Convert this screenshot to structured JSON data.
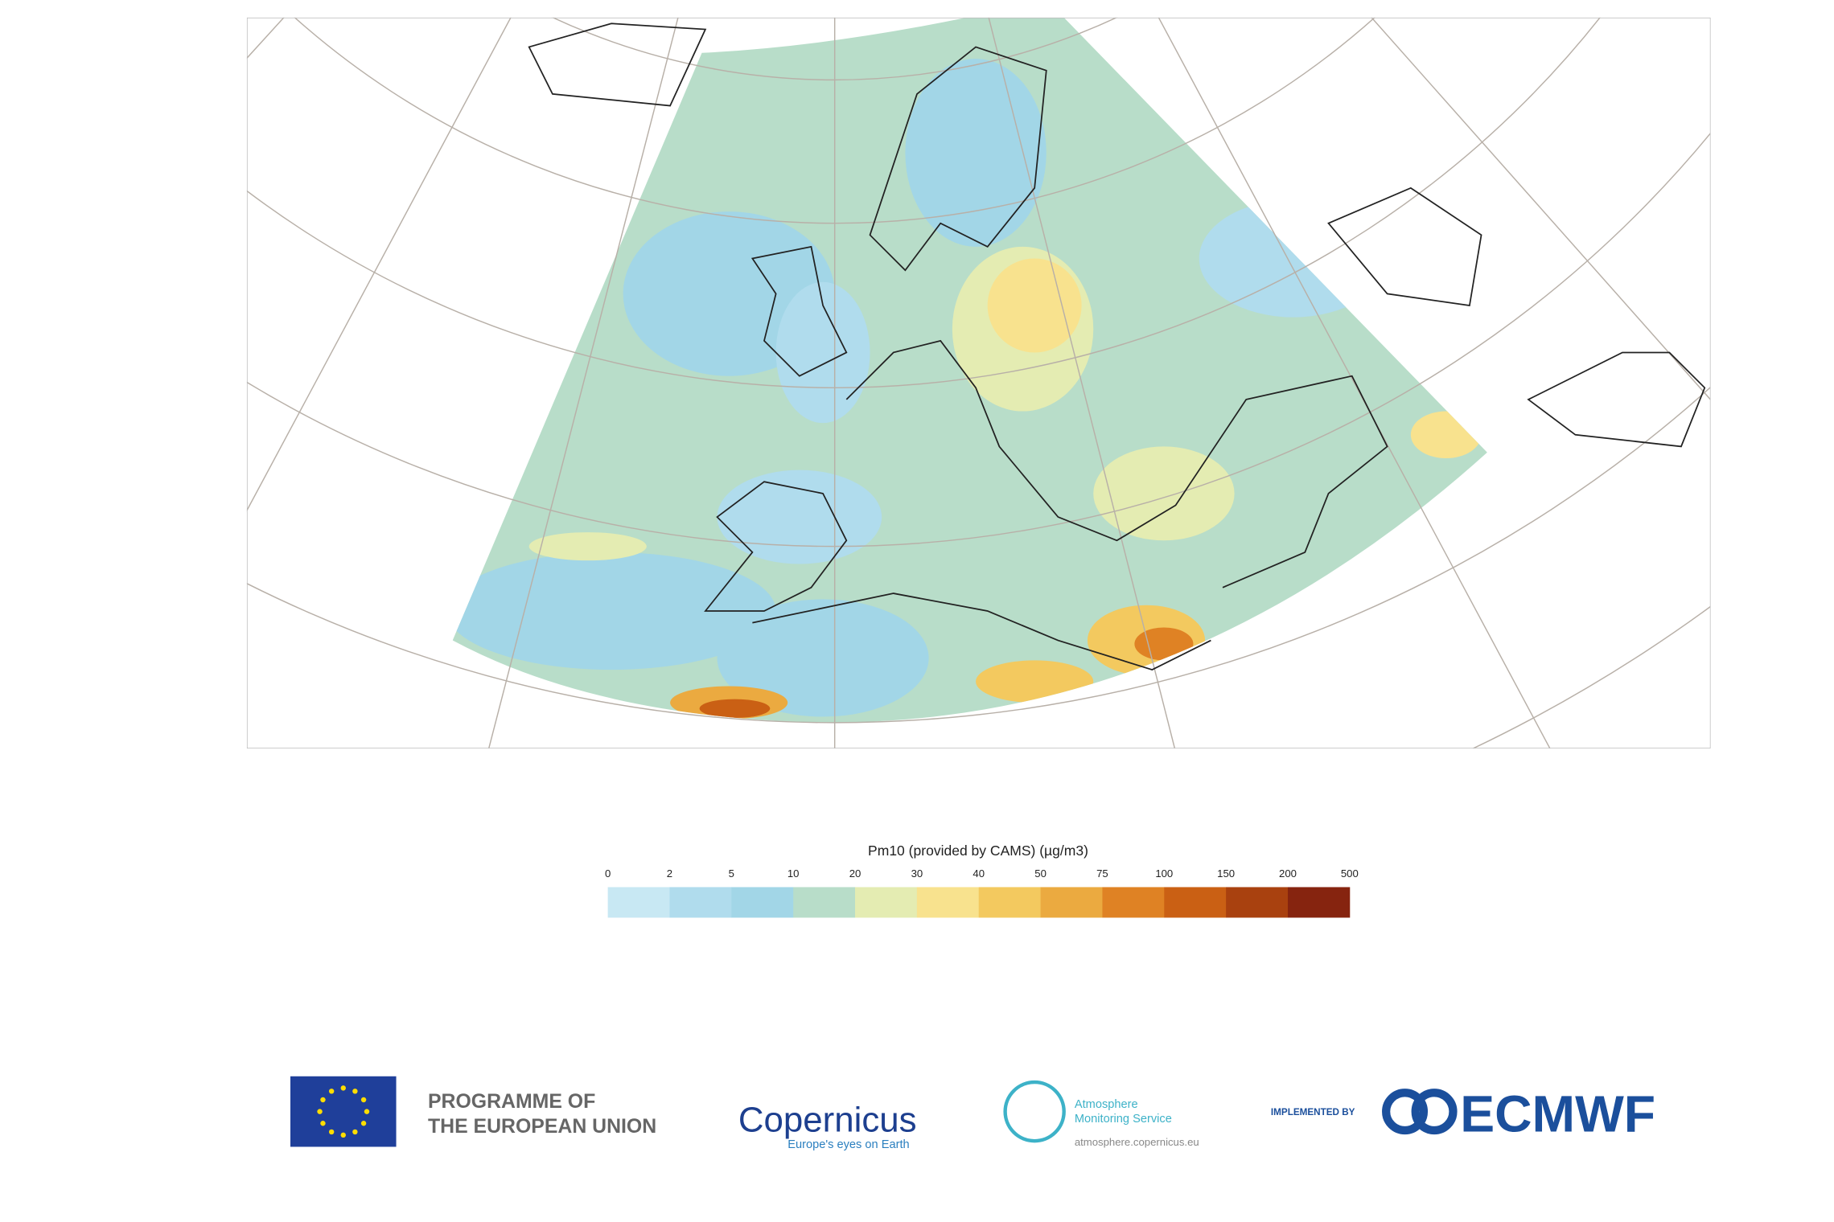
{
  "legend": {
    "title": "Pm10 (provided by CAMS) (µg/m3)",
    "ticks": [
      0,
      2,
      5,
      10,
      20,
      30,
      40,
      50,
      75,
      100,
      150,
      200,
      500
    ],
    "colors": [
      "#c8e8f3",
      "#b0dced",
      "#a2d6e7",
      "#b8ddc9",
      "#e4ecb2",
      "#f8e28e",
      "#f3c95f",
      "#ebaa40",
      "#df8224",
      "#ca6014",
      "#a9410f",
      "#86240f"
    ]
  },
  "footer": {
    "eu_line1": "PROGRAMME OF",
    "eu_line2": "THE EUROPEAN UNION",
    "copernicus": "Copernicus",
    "copernicus_tagline": "Europe's eyes on Earth",
    "cams_line1": "Atmosphere",
    "cams_line2": "Monitoring Service",
    "cams_url": "atmosphere.copernicus.eu",
    "implemented_by": "IMPLEMENTED BY",
    "ecmwf": "ECMWF"
  }
}
